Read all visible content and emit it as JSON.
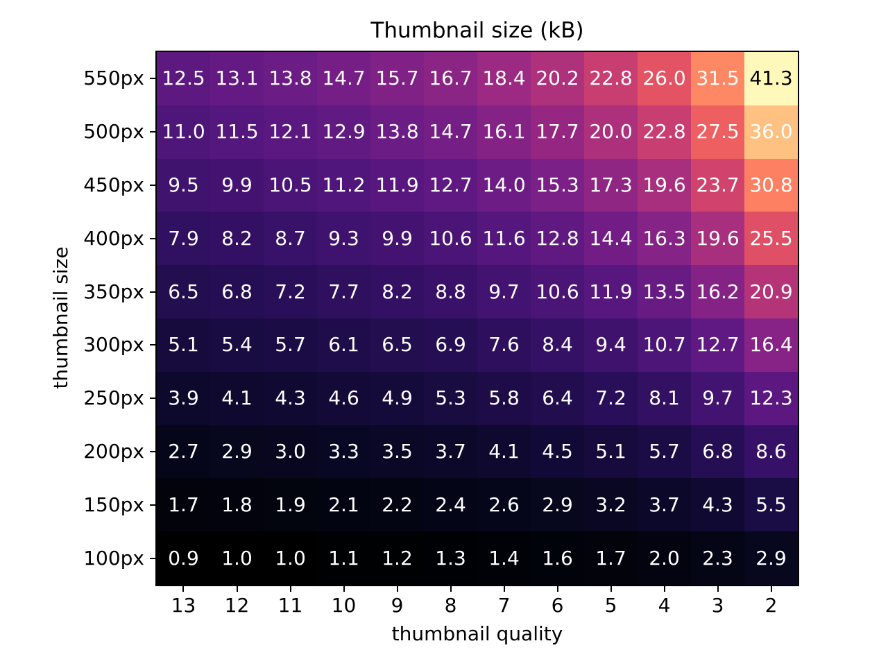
{
  "chart_data": {
    "type": "heatmap",
    "title": "Thumbnail size (kB)",
    "xlabel": "thumbnail quality",
    "ylabel": "thumbnail size",
    "x_categories": [
      "13",
      "12",
      "11",
      "10",
      "9",
      "8",
      "7",
      "6",
      "5",
      "4",
      "3",
      "2"
    ],
    "y_categories": [
      "550px",
      "500px",
      "450px",
      "400px",
      "350px",
      "300px",
      "250px",
      "200px",
      "150px",
      "100px"
    ],
    "values": [
      [
        12.5,
        13.1,
        13.8,
        14.7,
        15.7,
        16.7,
        18.4,
        20.2,
        22.8,
        26.0,
        31.5,
        41.3
      ],
      [
        11.0,
        11.5,
        12.1,
        12.9,
        13.8,
        14.7,
        16.1,
        17.7,
        20.0,
        22.8,
        27.5,
        36.0
      ],
      [
        9.5,
        9.9,
        10.5,
        11.2,
        11.9,
        12.7,
        14.0,
        15.3,
        17.3,
        19.6,
        23.7,
        30.8
      ],
      [
        7.9,
        8.2,
        8.7,
        9.3,
        9.9,
        10.6,
        11.6,
        12.8,
        14.4,
        16.3,
        19.6,
        25.5
      ],
      [
        6.5,
        6.8,
        7.2,
        7.7,
        8.2,
        8.8,
        9.7,
        10.6,
        11.9,
        13.5,
        16.2,
        20.9
      ],
      [
        5.1,
        5.4,
        5.7,
        6.1,
        6.5,
        6.9,
        7.6,
        8.4,
        9.4,
        10.7,
        12.7,
        16.4
      ],
      [
        3.9,
        4.1,
        4.3,
        4.6,
        4.9,
        5.3,
        5.8,
        6.4,
        7.2,
        8.1,
        9.7,
        12.3
      ],
      [
        2.7,
        2.9,
        3.0,
        3.3,
        3.5,
        3.7,
        4.1,
        4.5,
        5.1,
        5.7,
        6.8,
        8.6
      ],
      [
        1.7,
        1.8,
        1.9,
        2.1,
        2.2,
        2.4,
        2.6,
        2.9,
        3.2,
        3.7,
        4.3,
        5.5
      ],
      [
        0.9,
        1.0,
        1.0,
        1.1,
        1.2,
        1.3,
        1.4,
        1.6,
        1.7,
        2.0,
        2.3,
        2.9
      ]
    ],
    "value_format": "one_decimal",
    "colormap": "magma",
    "vmin": 0.9,
    "vmax": 41.3,
    "annotation_text_colors": {
      "light": "#ffffff",
      "dark": "#000000",
      "dark_text_norm_threshold": 0.9
    },
    "grid": false,
    "legend": "none"
  }
}
